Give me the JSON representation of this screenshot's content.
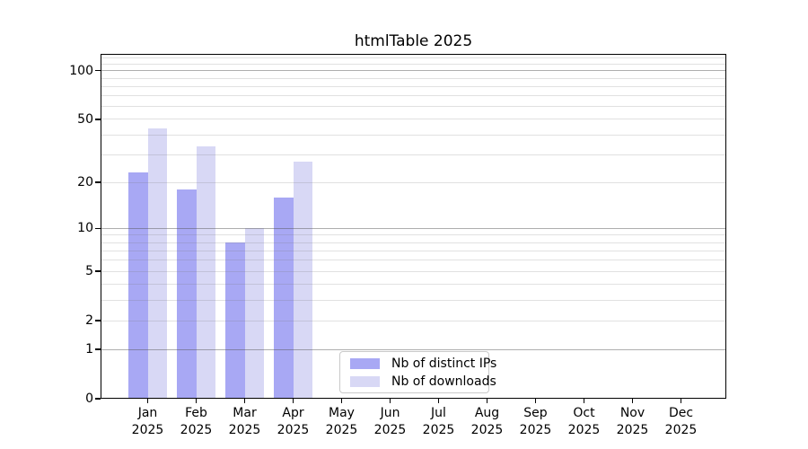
{
  "title": "htmlTable 2025",
  "legend": {
    "items": [
      {
        "label": "Nb of distinct IPs",
        "color": "#a8a8f4"
      },
      {
        "label": "Nb of downloads",
        "color": "#d8d8f5"
      }
    ]
  },
  "chart_data": {
    "type": "bar",
    "title": "htmlTable 2025",
    "categories": [
      "Jan 2025",
      "Feb 2025",
      "Mar 2025",
      "Apr 2025",
      "May 2025",
      "Jun 2025",
      "Jul 2025",
      "Aug 2025",
      "Sep 2025",
      "Oct 2025",
      "Nov 2025",
      "Dec 2025"
    ],
    "series": [
      {
        "name": "Nb of distinct IPs",
        "color": "#a8a8f4",
        "values": [
          23,
          18,
          8,
          16,
          0,
          0,
          0,
          0,
          0,
          0,
          0,
          0
        ]
      },
      {
        "name": "Nb of downloads",
        "color": "#d8d8f5",
        "values": [
          44,
          34,
          10,
          27,
          0,
          0,
          0,
          0,
          0,
          0,
          0,
          0
        ]
      }
    ],
    "xlabel": "",
    "ylabel": "",
    "y_axis": {
      "scale": "log10(1+v)",
      "range": [
        0,
        127
      ],
      "tick_values": [
        0,
        1,
        2,
        5,
        10,
        20,
        50,
        100
      ],
      "tick_labels": [
        "0",
        "1",
        "2",
        "5",
        "10",
        "20",
        "50",
        "100"
      ],
      "major_gridlines": [
        1,
        10,
        100
      ],
      "minor_gridlines": [
        2,
        3,
        4,
        5,
        6,
        7,
        8,
        9,
        20,
        30,
        40,
        50,
        60,
        70,
        80,
        90,
        110,
        120
      ]
    },
    "grid": true,
    "legend_position": "lower center"
  },
  "colors": {
    "bar_distinct_ips": "#a8a8f4",
    "bar_downloads": "#d8d8f5",
    "major_grid": "#b0b0b0",
    "minor_grid": "#e6e6e6",
    "axis": "#000000",
    "background": "#ffffff"
  }
}
